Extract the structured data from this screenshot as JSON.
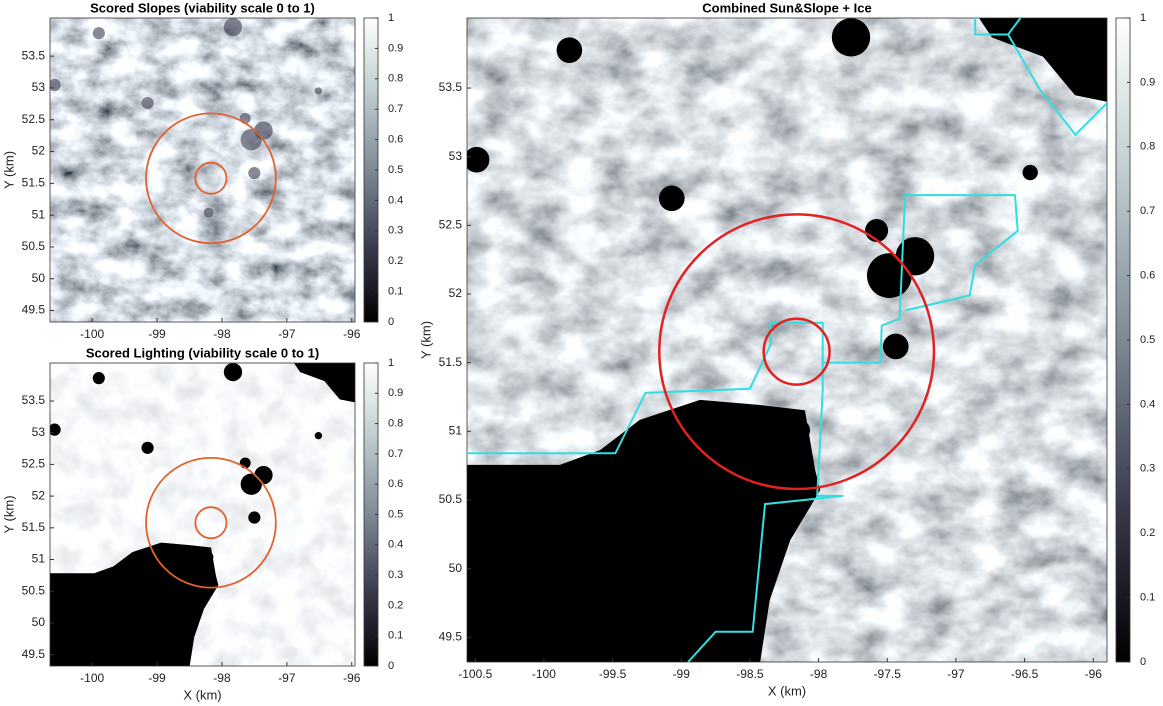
{
  "chart_data": [
    {
      "type": "heatmap",
      "title": "Scored Slopes (viability scale 0 to 1)",
      "ylabel": "Y (km)",
      "xlim": [
        -100.65,
        -95.95
      ],
      "ylim": [
        49.32,
        54.1
      ],
      "xticks": [
        -100,
        -99,
        -98,
        -97,
        -96
      ],
      "yticks": [
        49.5,
        50,
        50.5,
        51,
        51.5,
        52,
        52.5,
        53,
        53.5
      ],
      "clim": [
        0,
        1
      ],
      "cticks": [
        0,
        0.1,
        0.2,
        0.3,
        0.4,
        0.5,
        0.6,
        0.7,
        0.8,
        0.9,
        1
      ],
      "colormap": [
        "#000000",
        "#3c3c50",
        "#7c8a96",
        "#bccccc",
        "#ffffff"
      ],
      "circle_color": "#e0622e",
      "circles": [
        {
          "cx": -98.17,
          "cy": 51.58,
          "r": 0.24
        },
        {
          "cx": -98.17,
          "cy": 51.58,
          "r": 1.0
        }
      ]
    },
    {
      "type": "heatmap",
      "title": "Scored Lighting (viability scale 0 to 1)",
      "xlabel": "X (km)",
      "ylabel": "Y (km)",
      "xlim": [
        -100.65,
        -95.95
      ],
      "ylim": [
        49.32,
        54.1
      ],
      "xticks": [
        -100,
        -99,
        -98,
        -97,
        -96
      ],
      "yticks": [
        49.5,
        50,
        50.5,
        51,
        51.5,
        52,
        52.5,
        53,
        53.5
      ],
      "clim": [
        0,
        1
      ],
      "cticks": [
        0,
        0.1,
        0.2,
        0.3,
        0.4,
        0.5,
        0.6,
        0.7,
        0.8,
        0.9,
        1
      ],
      "colormap": [
        "#000000",
        "#3c3c50",
        "#7c8a96",
        "#bccccc",
        "#ffffff"
      ],
      "circle_color": "#e0622e",
      "circles": [
        {
          "cx": -98.17,
          "cy": 51.58,
          "r": 0.24
        },
        {
          "cx": -98.17,
          "cy": 51.58,
          "r": 1.0
        }
      ]
    },
    {
      "type": "heatmap",
      "title": "Combined Sun&Slope + Ice",
      "xlabel": "X (km)",
      "ylabel": "Y (km)",
      "xlim": [
        -100.56,
        -95.9
      ],
      "ylim": [
        49.32,
        54.01
      ],
      "xticks": [
        -100.5,
        -100,
        -99.5,
        -99,
        -98.5,
        -98,
        -97.5,
        -97,
        -96.5,
        -96
      ],
      "yticks": [
        49.5,
        50,
        50.5,
        51,
        51.5,
        52,
        52.5,
        53,
        53.5
      ],
      "clim": [
        0,
        1
      ],
      "cticks": [
        0,
        0.1,
        0.2,
        0.3,
        0.4,
        0.5,
        0.6,
        0.7,
        0.8,
        0.9,
        1
      ],
      "colormap": [
        "#000000",
        "#3c3c50",
        "#7c8a96",
        "#bccccc",
        "#ffffff"
      ],
      "circle_color": "#e02222",
      "circles": [
        {
          "cx": -98.16,
          "cy": 51.58,
          "r": 0.24
        },
        {
          "cx": -98.16,
          "cy": 51.58,
          "r": 1.0
        }
      ],
      "boundary_color": "#33dde0",
      "boundary": {
        "x": [
          -100.56,
          -99.48,
          -99.26,
          -98.5,
          -98.35,
          -98.35,
          -97.97,
          -97.97,
          -98.01,
          -97.82,
          -98.39,
          -98.48,
          -98.75,
          -98.95,
          null,
          -97.97,
          -97.55,
          -97.54,
          -97.41,
          -97.37,
          -96.57,
          -96.55,
          -96.86,
          -96.9,
          -97.37,
          null,
          -96.86,
          -96.86,
          -96.62,
          -96.39,
          -96.13,
          -95.9,
          null,
          -96.53,
          -96.62
        ],
        "y": [
          50.84,
          50.84,
          51.28,
          51.31,
          51.63,
          51.79,
          51.79,
          51.3,
          50.53,
          50.53,
          50.47,
          49.54,
          49.54,
          49.32,
          null,
          51.5,
          51.5,
          51.77,
          51.82,
          52.72,
          52.72,
          52.46,
          52.21,
          51.99,
          51.88,
          null,
          54.01,
          53.89,
          53.89,
          53.49,
          53.16,
          53.39,
          null,
          54.01,
          53.89
        ]
      }
    }
  ]
}
